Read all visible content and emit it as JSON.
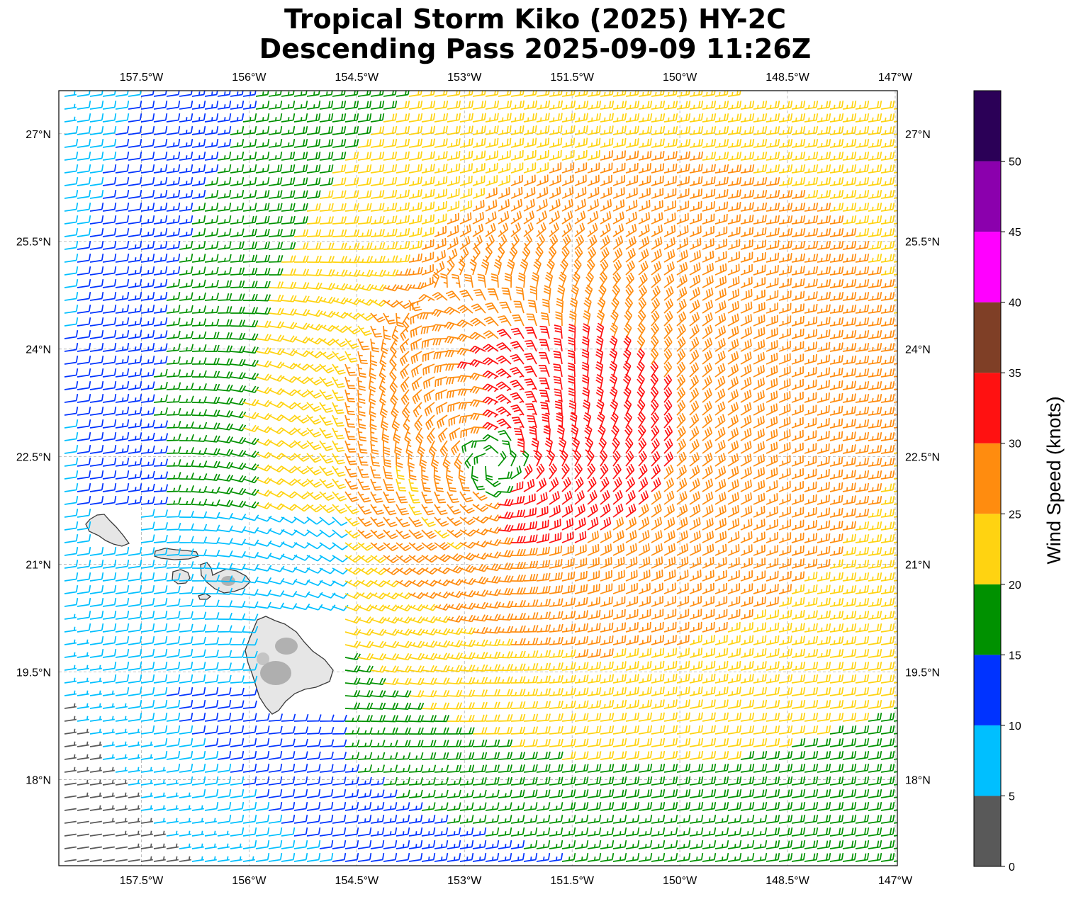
{
  "title_line1": "Tropical Storm Kiko (2025) HY-2C",
  "title_line2": "Descending Pass 2025-09-09 11:26Z",
  "map": {
    "lon_range": [
      -158.65,
      -146.97
    ],
    "lat_range": [
      16.8,
      27.6
    ],
    "lon_ticks": [
      {
        "value": -157.5,
        "label": "157.5°W"
      },
      {
        "value": -156.0,
        "label": "156°W"
      },
      {
        "value": -154.5,
        "label": "154.5°W"
      },
      {
        "value": -153.0,
        "label": "153°W"
      },
      {
        "value": -151.5,
        "label": "151.5°W"
      },
      {
        "value": -150.0,
        "label": "150°W"
      },
      {
        "value": -148.5,
        "label": "148.5°W"
      },
      {
        "value": -147.0,
        "label": "147°W"
      }
    ],
    "lat_ticks": [
      {
        "value": 27.0,
        "label": "27°N"
      },
      {
        "value": 25.5,
        "label": "25.5°N"
      },
      {
        "value": 24.0,
        "label": "24°N"
      },
      {
        "value": 22.5,
        "label": "22.5°N"
      },
      {
        "value": 21.0,
        "label": "21°N"
      },
      {
        "value": 19.5,
        "label": "19.5°N"
      },
      {
        "value": 18.0,
        "label": "18°N"
      }
    ],
    "gridlines": true,
    "storm_center": {
      "lon": -152.6,
      "lat": 22.4
    },
    "islands": [
      "Oahu",
      "Molokai",
      "Lanai",
      "Maui",
      "Kahoolawe",
      "Hawaii"
    ]
  },
  "colorbar": {
    "label": "Wind Speed (knots)",
    "boundaries": [
      0,
      5,
      10,
      15,
      20,
      25,
      30,
      35,
      40,
      45,
      50,
      55
    ],
    "tick_labels": [
      "0",
      "5",
      "10",
      "15",
      "20",
      "25",
      "30",
      "35",
      "40",
      "45",
      "50"
    ],
    "colors": [
      "#595959",
      "#00bfff",
      "#0033ff",
      "#009100",
      "#ffd311",
      "#ff8c0f",
      "#ff1111",
      "#7f3f26",
      "#ff00ff",
      "#8b00ad",
      "#2b0057"
    ]
  }
}
